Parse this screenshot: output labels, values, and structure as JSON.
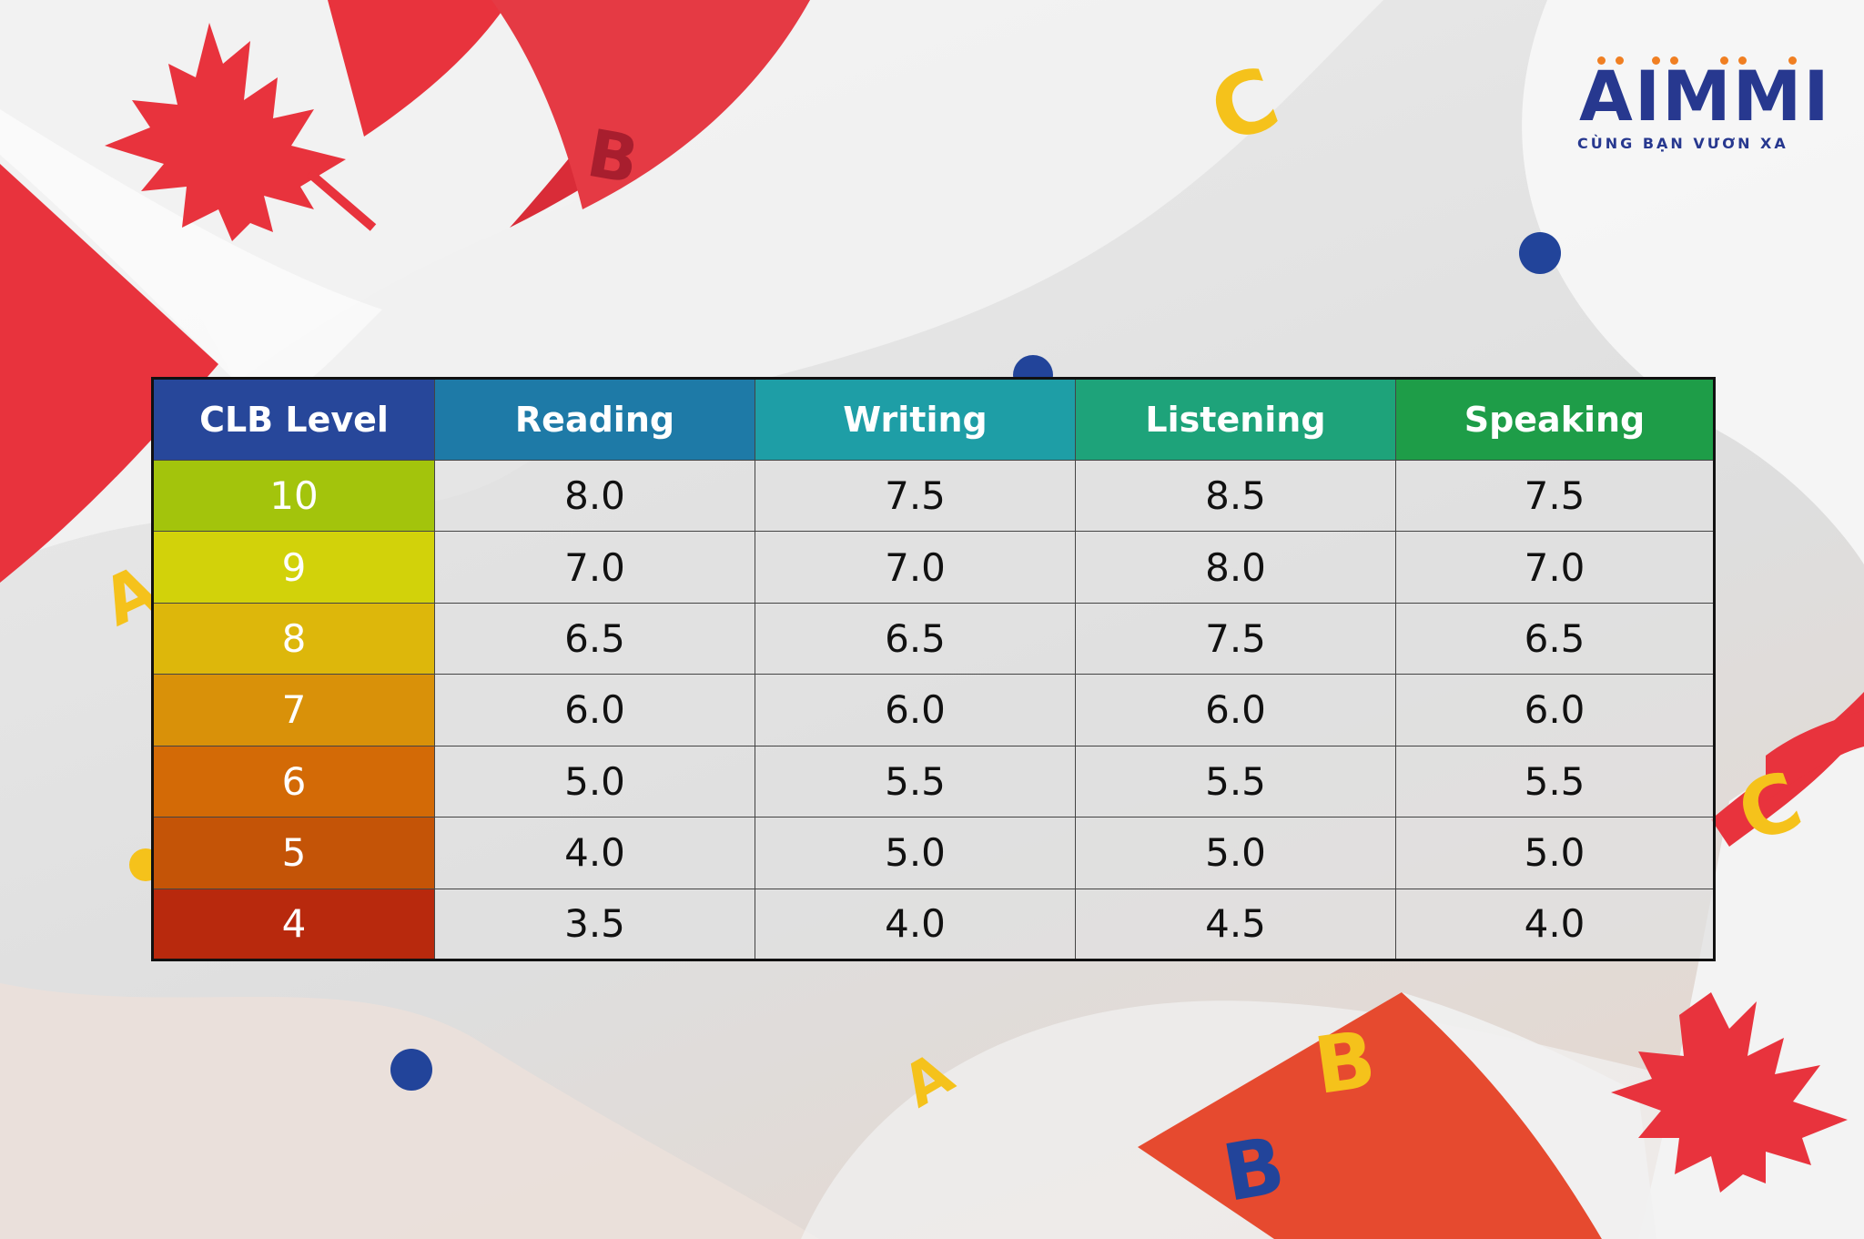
{
  "logo": {
    "wordmark": "AIMMI",
    "tagline": "CÙNG BẠN VƯƠN XA",
    "brand_color": "#27388f",
    "dot_color": "#f07f22"
  },
  "decor": {
    "flag_color": "#e8333d",
    "dot_color": "#22449a",
    "letter_yellow": "#f5c21b",
    "letter_blue": "#22449a",
    "letters": [
      "A",
      "B",
      "C",
      "A",
      "B",
      "B",
      "C"
    ]
  },
  "table": {
    "headers": [
      {
        "label": "CLB Level",
        "color": "#27479a"
      },
      {
        "label": "Reading",
        "color": "#1e7aa7"
      },
      {
        "label": "Writing",
        "color": "#1e9ea6"
      },
      {
        "label": "Listening",
        "color": "#1ea37a"
      },
      {
        "label": "Speaking",
        "color": "#1e9d48"
      }
    ],
    "rows": [
      {
        "level": "10",
        "color": "#a3c40c",
        "reading": "8.0",
        "writing": "7.5",
        "listening": "8.5",
        "speaking": "7.5"
      },
      {
        "level": "9",
        "color": "#d2d20a",
        "reading": "7.0",
        "writing": "7.0",
        "listening": "8.0",
        "speaking": "7.0"
      },
      {
        "level": "8",
        "color": "#ddb70b",
        "reading": "6.5",
        "writing": "6.5",
        "listening": "7.5",
        "speaking": "6.5"
      },
      {
        "level": "7",
        "color": "#d99109",
        "reading": "6.0",
        "writing": "6.0",
        "listening": "6.0",
        "speaking": "6.0"
      },
      {
        "level": "6",
        "color": "#d36a06",
        "reading": "5.0",
        "writing": "5.5",
        "listening": "5.5",
        "speaking": "5.5"
      },
      {
        "level": "5",
        "color": "#c45407",
        "reading": "4.0",
        "writing": "5.0",
        "listening": "5.0",
        "speaking": "5.0"
      },
      {
        "level": "4",
        "color": "#b8290d",
        "reading": "3.5",
        "writing": "4.0",
        "listening": "4.5",
        "speaking": "4.0"
      }
    ]
  }
}
